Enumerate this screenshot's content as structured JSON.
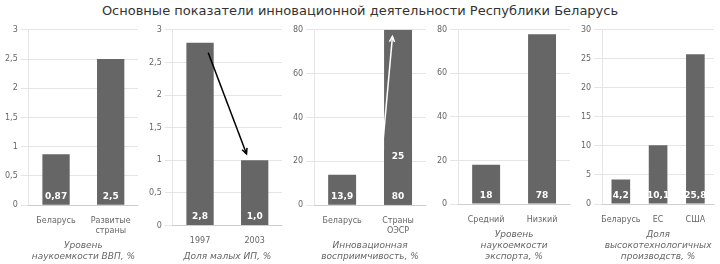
{
  "title": "Основные показатели инновационной деятельности Республики Беларусь",
  "chart_data": [
    {
      "type": "bar",
      "categories": [
        "Беларусь",
        "Развитые страны"
      ],
      "values": [
        0.87,
        2.5
      ],
      "value_labels": [
        "0,87",
        "2,5"
      ],
      "data_labels": true,
      "color": "#666666",
      "ylim": [
        0,
        3
      ],
      "yticks": [
        0,
        {
          "value": 0.5,
          "label": "0,5"
        },
        1,
        {
          "value": 1.5,
          "label": "1,5"
        },
        2,
        {
          "value": 2.5,
          "label": "2,5"
        },
        3
      ],
      "grid": "y",
      "xlabel": "Уровень\nнаукоемкости ВВП, %"
    },
    {
      "type": "bar",
      "categories": [
        "1997",
        "2003"
      ],
      "values": [
        2.8,
        1.0
      ],
      "value_labels": [
        "2,8",
        "1,0"
      ],
      "data_labels": true,
      "color": "#666666",
      "ylim": [
        0,
        3
      ],
      "yticks": [
        0,
        {
          "value": 0.5,
          "label": "0,5"
        },
        1,
        {
          "value": 1.5,
          "label": "1,5"
        },
        2,
        {
          "value": 2.5,
          "label": "2,5"
        },
        3
      ],
      "grid": "y",
      "xlabel": "Доля малых ИП, %",
      "annotations": [
        {
          "type": "arrow",
          "x1": 0.15,
          "y1": 2.65,
          "x2": 0.85,
          "y2": 1.1,
          "color": "black"
        }
      ]
    },
    {
      "type": "bar",
      "categories": [
        "Беларусь",
        "Страны ОЭСР"
      ],
      "series": [
        {
          "color": "#666666",
          "values": [
            13.9,
            80
          ],
          "value_labels": [
            "13,9",
            "80"
          ]
        },
        {
          "color": "#666666",
          "values": [
            null,
            25
          ],
          "value_labels": [
            null,
            "25"
          ]
        }
      ],
      "data_labels": true,
      "ylim": [
        0,
        80
      ],
      "yticks": [
        0,
        20,
        40,
        60,
        80
      ],
      "grid": "y",
      "xlabel": "Инновационная\nвосприимчивость, %",
      "annotations": [
        {
          "type": "arrow",
          "x1": 0.72,
          "y1": 26,
          "x2": 0.9,
          "y2": 77,
          "color": "white"
        }
      ]
    },
    {
      "type": "bar",
      "categories": [
        "Средний",
        "Низкий"
      ],
      "values": [
        18,
        78
      ],
      "value_labels": [
        "18",
        "78"
      ],
      "data_labels": true,
      "color": "#666666",
      "ylim": [
        0,
        80
      ],
      "yticks": [
        0,
        20,
        40,
        60,
        80
      ],
      "grid": "y",
      "xlabel": "Уровень\nнаукоемкости\nэкспорта, %"
    },
    {
      "type": "bar",
      "categories": [
        "Беларусь",
        "ЕС",
        "США"
      ],
      "values": [
        4.2,
        10.1,
        25.8
      ],
      "value_labels": [
        "4,2",
        "10,1",
        "25,8"
      ],
      "data_labels": true,
      "color": "#666666",
      "ylim": [
        0,
        30
      ],
      "yticks": [
        0,
        5,
        10,
        15,
        20,
        25,
        30
      ],
      "grid": "y",
      "xlabel": "Доля\nвысокотехнологичных\nпроизводств, %"
    }
  ]
}
